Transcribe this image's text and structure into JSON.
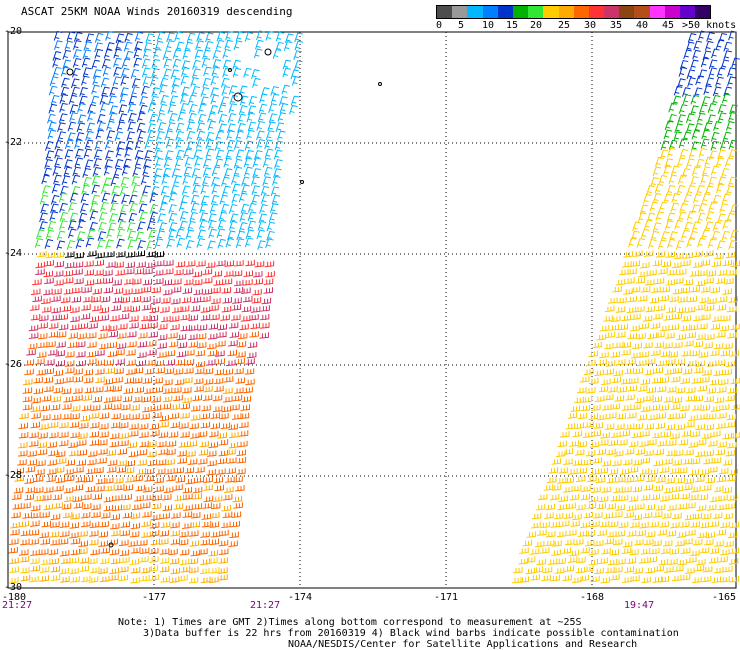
{
  "title": "ASCAT 25KM NOAA Winds 20160319 descending",
  "colorbar": {
    "colors": [
      "#4d4d4d",
      "#999999",
      "#00b8ff",
      "#0080ff",
      "#0033cc",
      "#00b300",
      "#33e633",
      "#ffcc00",
      "#ffaa00",
      "#ff6600",
      "#ff3333",
      "#cc3366",
      "#8b4513",
      "#b34d1a",
      "#ff33ff",
      "#cc00cc",
      "#6600cc",
      "#330066"
    ],
    "labels": [
      "0",
      "5",
      "10",
      "15",
      "20",
      "25",
      "30",
      "35",
      "40",
      "45",
      ">50 knots"
    ]
  },
  "lat_labels": [
    "-20",
    "-22",
    "-24",
    "-26",
    "-28",
    "-30"
  ],
  "lon_labels": [
    "-180",
    "-177",
    "-174",
    "-171",
    "-168",
    "-165"
  ],
  "times": [
    "21:27",
    "21:27",
    "19:47"
  ],
  "notes": [
    "Note: 1) Times are GMT 2)Times along bottom correspond to measurement at ~25S",
    "3)Data buffer is 22 hrs from 20160319 4) Black wind barbs indicate possible contamination",
    "NOAA/NESDIS/Center for Satellite Applications and Research"
  ]
}
